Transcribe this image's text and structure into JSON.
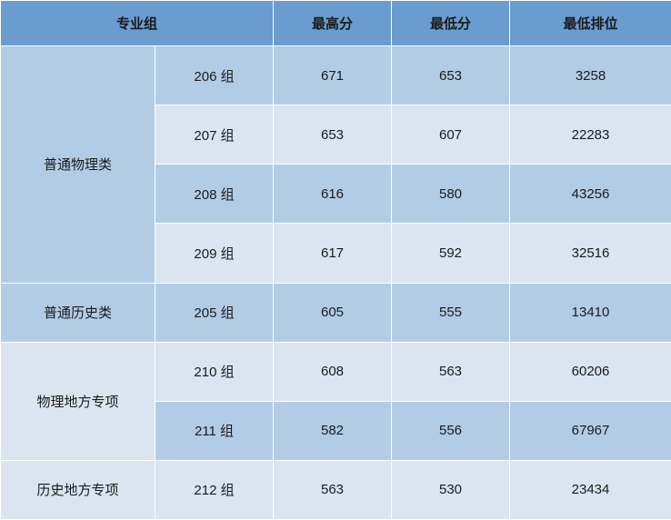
{
  "headers": {
    "category": "专业组",
    "group": "",
    "high_score": "最高分",
    "low_score": "最低分",
    "low_rank": "最低排位"
  },
  "colors": {
    "header_bg": "#6a9cd0",
    "row_dark": "#b3cce6",
    "row_light": "#dae5f1",
    "border": "#ffffff",
    "text": "#1a1a1a"
  },
  "categories": [
    {
      "name": "普通物理类",
      "rowspan": 4,
      "bg": "#b3cce6",
      "rows": [
        {
          "group": "206 组",
          "high": "671",
          "low": "653",
          "rank": "3258",
          "shade": "dark"
        },
        {
          "group": "207 组",
          "high": "653",
          "low": "607",
          "rank": "22283",
          "shade": "light"
        },
        {
          "group": "208 组",
          "high": "616",
          "low": "580",
          "rank": "43256",
          "shade": "dark"
        },
        {
          "group": "209 组",
          "high": "617",
          "low": "592",
          "rank": "32516",
          "shade": "light"
        }
      ]
    },
    {
      "name": "普通历史类",
      "rowspan": 1,
      "bg": "#b3cce6",
      "rows": [
        {
          "group": "205 组",
          "high": "605",
          "low": "555",
          "rank": "13410",
          "shade": "dark"
        }
      ]
    },
    {
      "name": "物理地方专项",
      "rowspan": 2,
      "bg": "#dae5f1",
      "rows": [
        {
          "group": "210 组",
          "high": "608",
          "low": "563",
          "rank": "60206",
          "shade": "light"
        },
        {
          "group": "211 组",
          "high": "582",
          "low": "556",
          "rank": "67967",
          "shade": "dark"
        }
      ]
    },
    {
      "name": "历史地方专项",
      "rowspan": 1,
      "bg": "#dae5f1",
      "rows": [
        {
          "group": "212 组",
          "high": "563",
          "low": "530",
          "rank": "23434",
          "shade": "light"
        }
      ]
    }
  ]
}
